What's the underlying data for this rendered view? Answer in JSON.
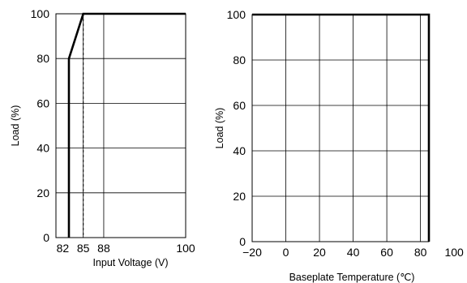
{
  "chart_data": [
    {
      "type": "line",
      "xlabel": "Input Voltage (V)",
      "ylabel": "Load (%)",
      "xlim": [
        81,
        100
      ],
      "ylim": [
        0,
        100
      ],
      "x_ticks": [
        82,
        85,
        88,
        100
      ],
      "y_ticks": [
        0,
        20,
        40,
        60,
        80,
        100
      ],
      "x_gridlines": [
        85,
        88
      ],
      "y_gridlines": [
        20,
        40,
        60,
        80
      ],
      "series": [
        {
          "x": [
            82.9,
            82.9,
            85,
            100
          ],
          "y": [
            0,
            80,
            100,
            100
          ]
        }
      ],
      "reference_lines": [
        {
          "orientation": "vertical",
          "x": 85,
          "style": "dashed"
        }
      ],
      "grid": true
    },
    {
      "type": "line",
      "xlabel": "Baseplate Temperature (℃)",
      "ylabel": "Load (%)",
      "xlim": [
        -20,
        85
      ],
      "ylim": [
        0,
        100
      ],
      "x_ticks": [
        -20,
        0,
        20,
        40,
        60,
        80,
        100
      ],
      "y_ticks": [
        0,
        20,
        40,
        60,
        80,
        100
      ],
      "x_gridlines": [
        0,
        20,
        40,
        60,
        80
      ],
      "y_gridlines": [
        20,
        40,
        60,
        80
      ],
      "series": [
        {
          "x": [
            -20,
            85,
            85
          ],
          "y": [
            100,
            100,
            0
          ]
        }
      ],
      "grid": true
    }
  ]
}
